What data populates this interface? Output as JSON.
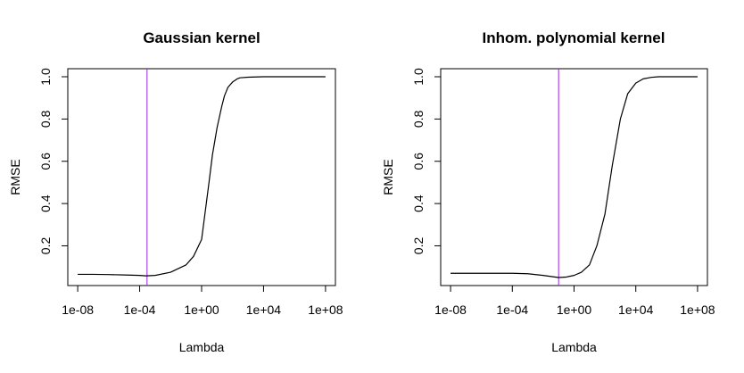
{
  "chart_data": [
    {
      "type": "line",
      "title": "Gaussian kernel",
      "xlabel": "Lambda",
      "ylabel": "RMSE",
      "x_scale": "log10",
      "xlim": [
        1e-08,
        100000000.0
      ],
      "ylim": [
        0.05,
        1.0
      ],
      "x_ticks": [
        1e-08,
        0.0001,
        1.0,
        10000.0,
        100000000.0
      ],
      "x_tick_labels": [
        "1e-08",
        "1e-04",
        "1e+00",
        "1e+04",
        "1e+08"
      ],
      "y_ticks": [
        0.2,
        0.4,
        0.6,
        0.8,
        1.0
      ],
      "y_tick_labels": [
        "0.2",
        "0.4",
        "0.6",
        "0.8",
        "1.0"
      ],
      "vline": {
        "x": 0.0003,
        "color": "#a020f0"
      },
      "line_color": "#000000",
      "grid": false,
      "series": [
        {
          "x": [
            1e-08,
            1e-07,
            1e-06,
            1e-05,
            0.0001,
            0.00025,
            0.001,
            0.01,
            0.1,
            0.3,
            1,
            2,
            3,
            5,
            10,
            20,
            30,
            50,
            100,
            200,
            300,
            1000,
            10000,
            100000,
            1000000.0,
            10000000.0,
            100000000.0
          ],
          "y": [
            0.065,
            0.065,
            0.064,
            0.062,
            0.06,
            0.058,
            0.06,
            0.075,
            0.11,
            0.15,
            0.23,
            0.4,
            0.5,
            0.63,
            0.76,
            0.86,
            0.91,
            0.95,
            0.975,
            0.99,
            0.995,
            0.998,
            1.0,
            1.0,
            1.0,
            1.0,
            1.0
          ]
        }
      ]
    },
    {
      "type": "line",
      "title": "Inhom. polynomial kernel",
      "xlabel": "Lambda",
      "ylabel": "RMSE",
      "x_scale": "log10",
      "xlim": [
        1e-08,
        100000000.0
      ],
      "ylim": [
        0.05,
        1.0
      ],
      "x_ticks": [
        1e-08,
        0.0001,
        1.0,
        10000.0,
        100000000.0
      ],
      "x_tick_labels": [
        "1e-08",
        "1e-04",
        "1e+00",
        "1e+04",
        "1e+08"
      ],
      "y_ticks": [
        0.2,
        0.4,
        0.6,
        0.8,
        1.0
      ],
      "y_tick_labels": [
        "0.2",
        "0.4",
        "0.6",
        "0.8",
        "1.0"
      ],
      "vline": {
        "x": 0.1,
        "color": "#a020f0"
      },
      "line_color": "#000000",
      "grid": false,
      "series": [
        {
          "x": [
            1e-08,
            1e-07,
            1e-06,
            1e-05,
            0.0001,
            0.001,
            0.01,
            0.1,
            0.3,
            1,
            3,
            10,
            30,
            100,
            300,
            1000,
            3000,
            10000,
            30000,
            100000,
            300000,
            1000000.0,
            10000000.0,
            100000000.0
          ],
          "y": [
            0.07,
            0.07,
            0.07,
            0.07,
            0.07,
            0.068,
            0.06,
            0.05,
            0.052,
            0.06,
            0.075,
            0.11,
            0.2,
            0.35,
            0.58,
            0.8,
            0.92,
            0.97,
            0.99,
            0.997,
            1.0,
            1.0,
            1.0,
            1.0
          ]
        }
      ]
    }
  ]
}
